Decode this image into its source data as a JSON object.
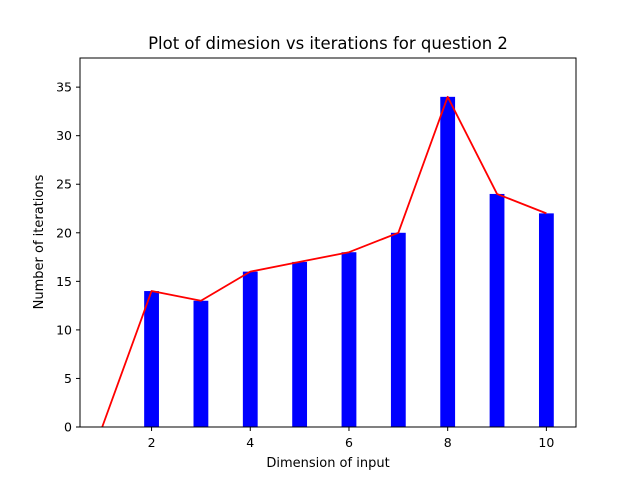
{
  "chart_data": {
    "type": "bar",
    "title": "Plot of dimesion vs iterations for question 2",
    "xlabel": "Dimension of input",
    "ylabel": "Number of iterations",
    "xlim": [
      0.55,
      10.6
    ],
    "ylim": [
      0,
      38
    ],
    "xticks": [
      2,
      4,
      6,
      8,
      10
    ],
    "yticks": [
      0,
      5,
      10,
      15,
      20,
      25,
      30,
      35
    ],
    "grid": false,
    "bar_width": 0.3,
    "series": [
      {
        "kind": "bar",
        "color": "#0000ff",
        "x": [
          2,
          3,
          4,
          5,
          6,
          7,
          8,
          9,
          10
        ],
        "values": [
          14,
          13,
          16,
          17,
          18,
          20,
          34,
          24,
          22
        ]
      },
      {
        "kind": "line",
        "color": "#ff0000",
        "x": [
          1,
          2,
          3,
          4,
          5,
          6,
          7,
          8,
          9,
          10
        ],
        "values": [
          0,
          14,
          13,
          16,
          17,
          18,
          20,
          34,
          24,
          22
        ]
      }
    ]
  }
}
